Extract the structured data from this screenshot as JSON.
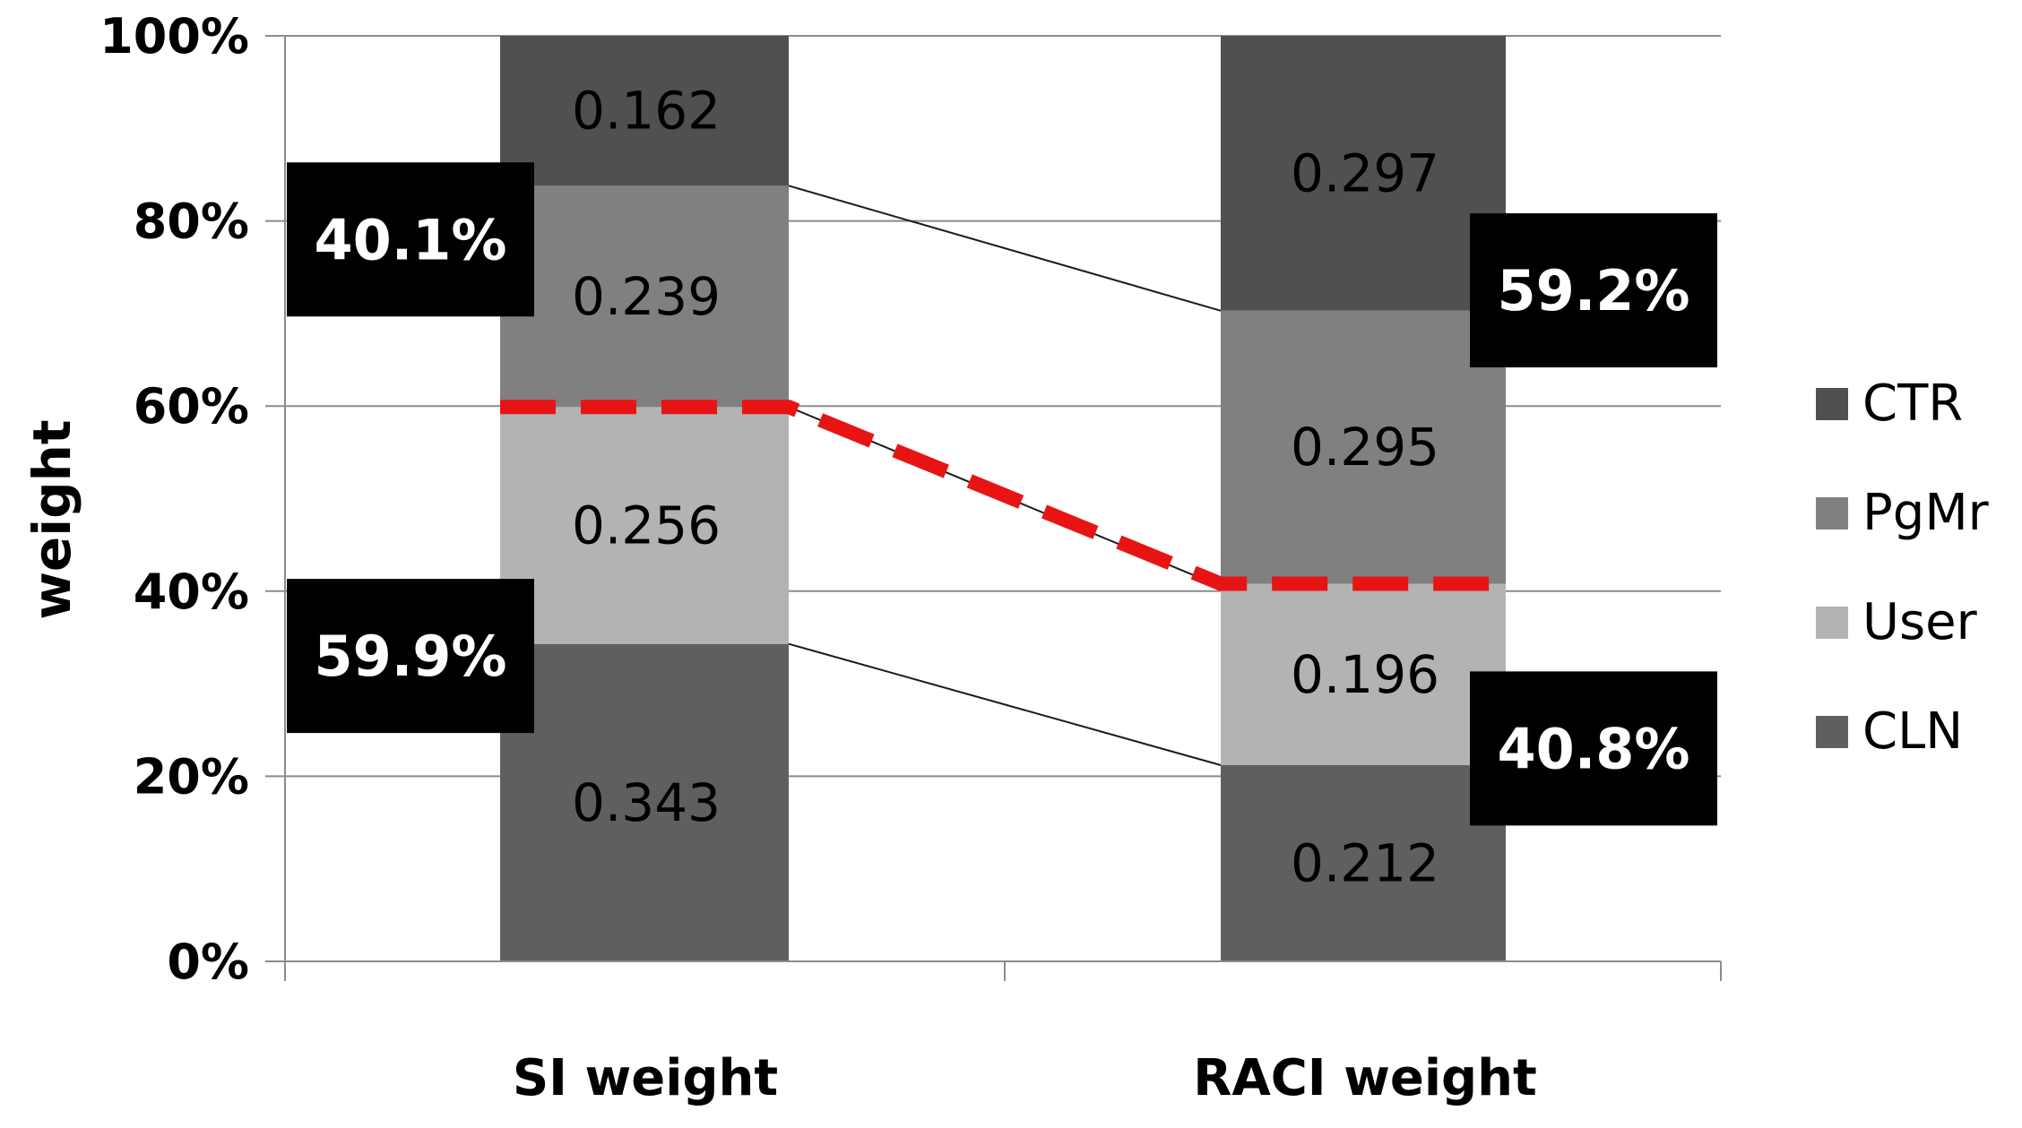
{
  "chart_data": {
    "type": "bar",
    "stacked": true,
    "percent": true,
    "title": "",
    "xlabel": "",
    "ylabel": "weight",
    "ylim": [
      0,
      100
    ],
    "yticks": [
      "0%",
      "20%",
      "40%",
      "60%",
      "80%",
      "100%"
    ],
    "categories": [
      "SI weight",
      "RACI weight"
    ],
    "series": [
      {
        "name": "CLN",
        "values": [
          0.343,
          0.212
        ],
        "labels": [
          "0.343",
          "0.212"
        ],
        "color": "#5f5f5f"
      },
      {
        "name": "User",
        "values": [
          0.256,
          0.196
        ],
        "labels": [
          "0.256",
          "0.196"
        ],
        "color": "#b3b3b3"
      },
      {
        "name": "PgMr",
        "values": [
          0.239,
          0.295
        ],
        "labels": [
          "0.239",
          "0.295"
        ],
        "color": "#808080"
      },
      {
        "name": "CTR",
        "values": [
          0.162,
          0.297
        ],
        "labels": [
          "0.162",
          "0.297"
        ],
        "color": "#505050"
      }
    ],
    "legend_order": [
      "CTR",
      "PgMr",
      "User",
      "CLN"
    ],
    "legend_position": "right",
    "grid": true,
    "divider_line": {
      "values": [
        59.9,
        40.8
      ],
      "color": "#e81414",
      "style": "dashed"
    },
    "annotations": [
      {
        "text": "40.1%",
        "category": "SI weight",
        "side": "left",
        "group": "upper"
      },
      {
        "text": "59.9%",
        "category": "SI weight",
        "side": "left",
        "group": "lower"
      },
      {
        "text": "59.2%",
        "category": "RACI weight",
        "side": "right",
        "group": "upper"
      },
      {
        "text": "40.8%",
        "category": "RACI weight",
        "side": "right",
        "group": "lower"
      }
    ]
  }
}
